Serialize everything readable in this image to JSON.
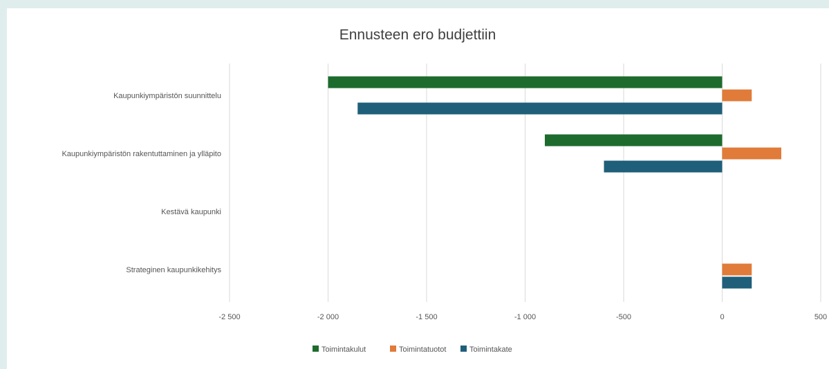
{
  "chart_data": {
    "type": "bar",
    "orientation": "horizontal",
    "title": "Ennusteen ero budjettiin",
    "xlabel": "",
    "ylabel": "",
    "categories": [
      "Kaupunkiympäristön suunnittelu",
      "Kaupunkiympäristön rakentuttaminen ja ylläpito",
      "Kestävä kaupunki",
      "Strateginen kaupunkikehitys"
    ],
    "series": [
      {
        "name": "Toimintakulut",
        "color": "#1e6b2e",
        "values": [
          -2000,
          -900,
          0,
          0
        ]
      },
      {
        "name": "Toimintatuotot",
        "color": "#e07b39",
        "values": [
          150,
          300,
          0,
          150
        ]
      },
      {
        "name": "Toimintakate",
        "color": "#1f5f7a",
        "values": [
          -1850,
          -600,
          0,
          150
        ]
      }
    ],
    "xlim": [
      -2500,
      500
    ],
    "xticks": [
      -2500,
      -2000,
      -1500,
      -1000,
      -500,
      0,
      500
    ],
    "xtick_labels": [
      "-2 500",
      "-2 000",
      "-1 500",
      "-1 000",
      "-500",
      "0",
      "500"
    ],
    "grid": true,
    "legend_position": "bottom"
  }
}
